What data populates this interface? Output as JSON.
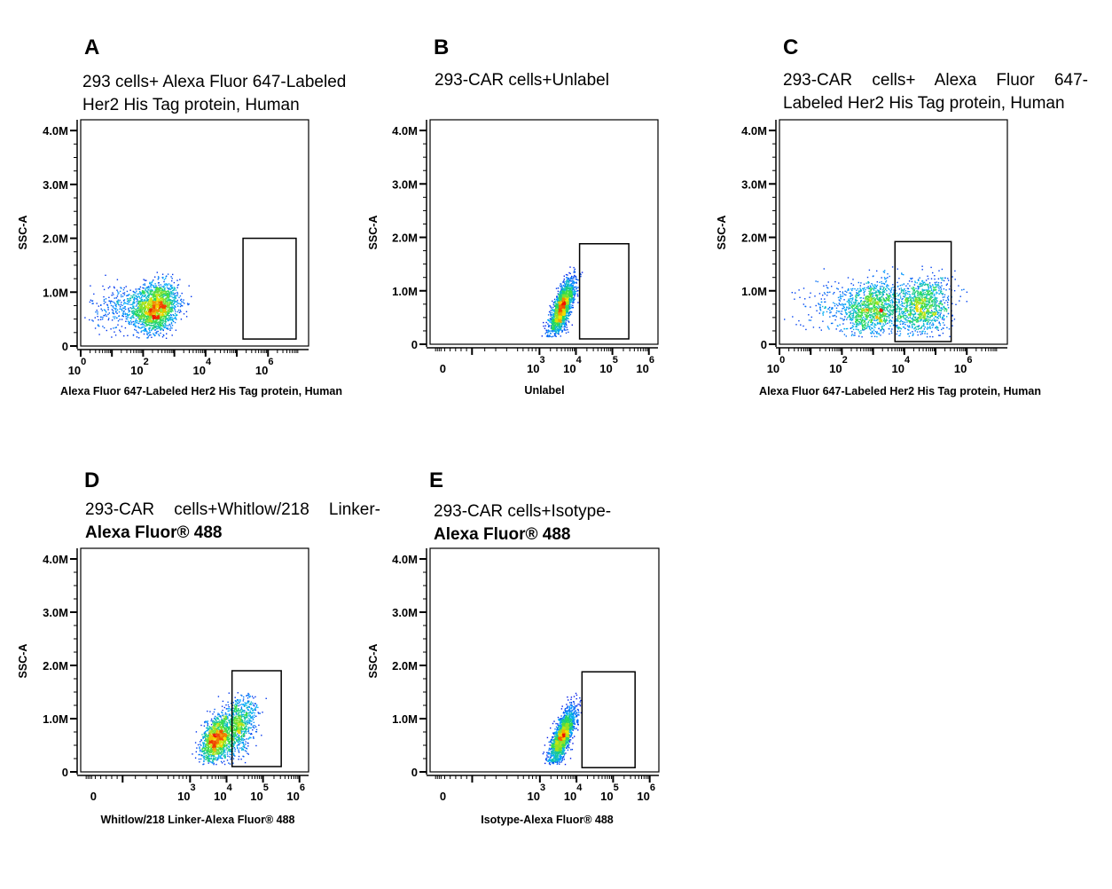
{
  "chart_data": [
    {
      "type": "scatter",
      "panel": "A",
      "title_lines": [
        "293 cells+ Alexa Fluor 647-Labeled",
        "Her2 His Tag protein, Human"
      ],
      "title_bold_prefix_line2": "",
      "xlabel": "Alexa Fluor 647-Labeled Her2 His Tag protein, Human",
      "ylabel": "SSC-A",
      "xscale": "log",
      "xlim": [
        0,
        7.3
      ],
      "xticks": [
        {
          "base": "10",
          "exp": "0",
          "v": 0
        },
        {
          "base": "10",
          "exp": "2",
          "v": 2
        },
        {
          "base": "10",
          "exp": "4",
          "v": 4
        },
        {
          "base": "10",
          "exp": "6",
          "v": 6
        }
      ],
      "ylim": [
        0,
        4.2
      ],
      "yticks": [
        {
          "label": "0",
          "v": 0
        },
        {
          "label": "1.0M",
          "v": 1
        },
        {
          "label": "2.0M",
          "v": 2
        },
        {
          "label": "3.0M",
          "v": 3
        },
        {
          "label": "4.0M",
          "v": 4
        }
      ],
      "gate": {
        "x": [
          5.2,
          6.9
        ],
        "y": [
          0.13,
          2.0
        ]
      },
      "clusters": [
        {
          "cx": 2.4,
          "cy": 0.72,
          "sx": 0.35,
          "sy": 0.23,
          "n": 1800,
          "rho": 0.15
        },
        {
          "cx": 1.4,
          "cy": 0.72,
          "sx": 0.55,
          "sy": 0.22,
          "n": 350,
          "rho": 0.0
        }
      ]
    },
    {
      "type": "scatter",
      "panel": "B",
      "title_lines": [
        "293-CAR cells+Unlabel"
      ],
      "xlabel": "Unlabel",
      "ylabel": "SSC-A",
      "xscale": "biexponential",
      "xlim": [
        0,
        6.25
      ],
      "xticks": [
        {
          "base": "0",
          "exp": "",
          "v": 0.35
        },
        {
          "base": "10",
          "exp": "3",
          "v": 3
        },
        {
          "base": "10",
          "exp": "4",
          "v": 4
        },
        {
          "base": "10",
          "exp": "5",
          "v": 5
        },
        {
          "base": "10",
          "exp": "6",
          "v": 6
        }
      ],
      "ylim": [
        0,
        4.2
      ],
      "yticks": [
        {
          "label": "0",
          "v": 0
        },
        {
          "label": "1.0M",
          "v": 1
        },
        {
          "label": "2.0M",
          "v": 2
        },
        {
          "label": "3.0M",
          "v": 3
        },
        {
          "label": "4.0M",
          "v": 4
        }
      ],
      "gate": {
        "x": [
          4.1,
          5.45
        ],
        "y": [
          0.1,
          1.88
        ]
      },
      "clusters": [
        {
          "cx": 3.6,
          "cy": 0.68,
          "sx": 0.17,
          "sy": 0.26,
          "n": 1900,
          "rho": 0.72
        }
      ]
    },
    {
      "type": "scatter",
      "panel": "C",
      "title_lines": [
        "293-CAR cells+ Alexa Fluor 647-",
        "Labeled Her2 His Tag protein, Human"
      ],
      "xlabel": "Alexa Fluor 647-Labeled Her2 His Tag protein, Human",
      "ylabel": "SSC-A",
      "xscale": "log",
      "xlim": [
        0,
        7.3
      ],
      "xticks": [
        {
          "base": "10",
          "exp": "0",
          "v": 0
        },
        {
          "base": "10",
          "exp": "2",
          "v": 2
        },
        {
          "base": "10",
          "exp": "4",
          "v": 4
        },
        {
          "base": "10",
          "exp": "6",
          "v": 6
        }
      ],
      "ylim": [
        0,
        4.2
      ],
      "yticks": [
        {
          "label": "0",
          "v": 0
        },
        {
          "label": "1.0M",
          "v": 1
        },
        {
          "label": "2.0M",
          "v": 2
        },
        {
          "label": "3.0M",
          "v": 3
        },
        {
          "label": "4.0M",
          "v": 4
        }
      ],
      "gate": {
        "x": [
          3.7,
          5.5
        ],
        "y": [
          0.05,
          1.92
        ]
      },
      "clusters": [
        {
          "cx": 3.0,
          "cy": 0.68,
          "sx": 0.45,
          "sy": 0.27,
          "n": 1100,
          "rho": 0.1
        },
        {
          "cx": 4.55,
          "cy": 0.72,
          "sx": 0.45,
          "sy": 0.27,
          "n": 1100,
          "rho": 0.15
        },
        {
          "cx": 2.0,
          "cy": 0.7,
          "sx": 0.7,
          "sy": 0.25,
          "n": 250,
          "rho": 0.0
        }
      ]
    },
    {
      "type": "scatter",
      "panel": "D",
      "title_lines": [
        "293-CAR cells+Whitlow/218 Linker-",
        "Alexa Fluor® 488"
      ],
      "xlabel": "Whitlow/218 Linker-Alexa Fluor® 488",
      "ylabel": "SSC-A",
      "xscale": "biexponential",
      "xlim": [
        0,
        6.25
      ],
      "xticks": [
        {
          "base": "0",
          "exp": "",
          "v": 0.35
        },
        {
          "base": "10",
          "exp": "3",
          "v": 3
        },
        {
          "base": "10",
          "exp": "4",
          "v": 4
        },
        {
          "base": "10",
          "exp": "5",
          "v": 5
        },
        {
          "base": "10",
          "exp": "6",
          "v": 6
        }
      ],
      "ylim": [
        0,
        4.2
      ],
      "yticks": [
        {
          "label": "0",
          "v": 0
        },
        {
          "label": "1.0M",
          "v": 1
        },
        {
          "label": "2.0M",
          "v": 2
        },
        {
          "label": "3.0M",
          "v": 3
        },
        {
          "label": "4.0M",
          "v": 4
        }
      ],
      "gate": {
        "x": [
          4.15,
          5.5
        ],
        "y": [
          0.1,
          1.9
        ]
      },
      "clusters": [
        {
          "cx": 3.7,
          "cy": 0.62,
          "sx": 0.2,
          "sy": 0.22,
          "n": 1200,
          "rho": 0.4
        },
        {
          "cx": 4.3,
          "cy": 0.85,
          "sx": 0.25,
          "sy": 0.28,
          "n": 900,
          "rho": 0.4
        }
      ]
    },
    {
      "type": "scatter",
      "panel": "E",
      "title_lines": [
        "293-CAR cells+Isotype-",
        "Alexa Fluor® 488"
      ],
      "xlabel": "Isotype-Alexa Fluor® 488",
      "ylabel": "SSC-A",
      "xscale": "biexponential",
      "xlim": [
        0,
        6.25
      ],
      "xticks": [
        {
          "base": "0",
          "exp": "",
          "v": 0.35
        },
        {
          "base": "10",
          "exp": "3",
          "v": 3
        },
        {
          "base": "10",
          "exp": "4",
          "v": 4
        },
        {
          "base": "10",
          "exp": "5",
          "v": 5
        },
        {
          "base": "10",
          "exp": "6",
          "v": 6
        }
      ],
      "ylim": [
        0,
        4.2
      ],
      "yticks": [
        {
          "label": "0",
          "v": 0
        },
        {
          "label": "1.0M",
          "v": 1
        },
        {
          "label": "2.0M",
          "v": 2
        },
        {
          "label": "3.0M",
          "v": 3
        },
        {
          "label": "4.0M",
          "v": 4
        }
      ],
      "gate": {
        "x": [
          4.15,
          5.6
        ],
        "y": [
          0.08,
          1.88
        ]
      },
      "clusters": [
        {
          "cx": 3.6,
          "cy": 0.68,
          "sx": 0.17,
          "sy": 0.26,
          "n": 1900,
          "rho": 0.72
        }
      ]
    }
  ]
}
